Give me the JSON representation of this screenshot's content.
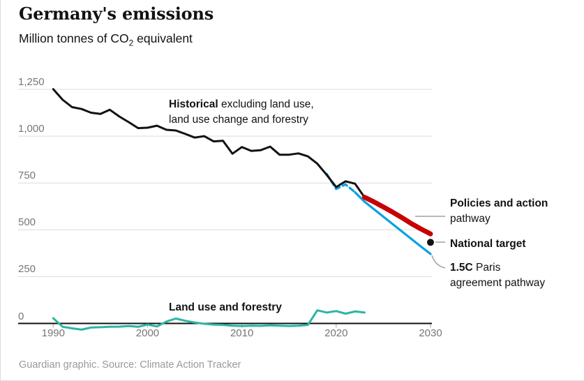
{
  "header": {
    "title": "Germany's emissions",
    "subtitle_prefix": "Million tonnes of CO",
    "subtitle_sub": "2",
    "subtitle_suffix": " equivalent"
  },
  "footer": {
    "credit": "Guardian graphic. Source: Climate Action Tracker"
  },
  "annotations": {
    "historical": {
      "bold": "Historical",
      "line1_rest": " excluding land use,",
      "line2": "land use change and forestry"
    },
    "policies": {
      "bold": "Policies and action",
      "line2": "pathway"
    },
    "national_target": {
      "bold": "National target"
    },
    "paris": {
      "bold": "1.5C",
      "line1_rest": " Paris",
      "line2": "agreement pathway"
    },
    "land_use": {
      "bold": "Land use and forestry"
    }
  },
  "chart_data": {
    "type": "line",
    "title": "Germany's emissions",
    "ylabel": "Million tonnes of CO2 equivalent",
    "grid": true,
    "x_axis": {
      "range": [
        1990,
        2030
      ],
      "ticks": [
        "1990",
        "2000",
        "2010",
        "2020",
        "2030"
      ],
      "tick_values": [
        1990,
        2000,
        2010,
        2020,
        2030
      ]
    },
    "y_axis": {
      "range": [
        0,
        1250
      ],
      "ticks": [
        {
          "v": 1250,
          "label": "1,250"
        },
        {
          "v": 1000,
          "label": "1,000"
        },
        {
          "v": 750,
          "label": "750"
        },
        {
          "v": 500,
          "label": "500"
        },
        {
          "v": 250,
          "label": "250"
        },
        {
          "v": 0,
          "label": "0"
        }
      ]
    },
    "series": [
      {
        "name": "Paris agreement pathway (overlap with historical)",
        "key": "paris-dashed-line",
        "color": "#0ba0e1",
        "width": 3.2,
        "dash": "7 5",
        "x_start": 2019,
        "values": [
          798,
          718,
          742,
          700
        ]
      },
      {
        "name": "1.5C Paris agreement pathway",
        "key": "paris-line",
        "color": "#0ba0e1",
        "width": 3.2,
        "dash": "",
        "x_start": 2022,
        "values": [
          700,
          650,
          610,
          570,
          530,
          490,
          450,
          410,
          371
        ]
      },
      {
        "name": "Historical excluding land use, land use change and forestry",
        "key": "historical-line",
        "color": "#121212",
        "width": 3,
        "dash": "",
        "x_start": 1990,
        "values": [
          1251,
          1194,
          1155,
          1145,
          1125,
          1119,
          1141,
          1105,
          1075,
          1043,
          1045,
          1056,
          1034,
          1030,
          1012,
          992,
          1000,
          972,
          975,
          906,
          942,
          921,
          925,
          944,
          901,
          901,
          908,
          892,
          853,
          793,
          728,
          759,
          746,
          674
        ]
      },
      {
        "name": "Policies and action pathway",
        "key": "policies-line",
        "color": "#c70000",
        "width": 7,
        "dash": "",
        "x_start": 2023,
        "values": [
          674,
          649,
          622,
          594,
          564,
          532,
          504,
          478
        ]
      },
      {
        "name": "Land use and forestry",
        "key": "landuse-line",
        "color": "#2bb5a2",
        "width": 3,
        "dash": "",
        "x_start": 1990,
        "values": [
          28,
          -18,
          -26,
          -33,
          -22,
          -20,
          -18,
          -17,
          -14,
          -18,
          -6,
          -16,
          10,
          26,
          14,
          5,
          -2,
          -6,
          -8,
          -12,
          -14,
          -12,
          -13,
          -10,
          -12,
          -14,
          -12,
          -8,
          70,
          58,
          66,
          52,
          64,
          58
        ]
      }
    ],
    "point": {
      "name": "National target",
      "year": 2030,
      "value": 433,
      "color": "#121212"
    },
    "colors": {
      "grid": "#dcdcdc",
      "axis": "#121212",
      "tick": "#b3b3b3",
      "axis_label": "#767676",
      "leader": "#a0a0a0"
    },
    "legend_position": "right-annotations"
  }
}
